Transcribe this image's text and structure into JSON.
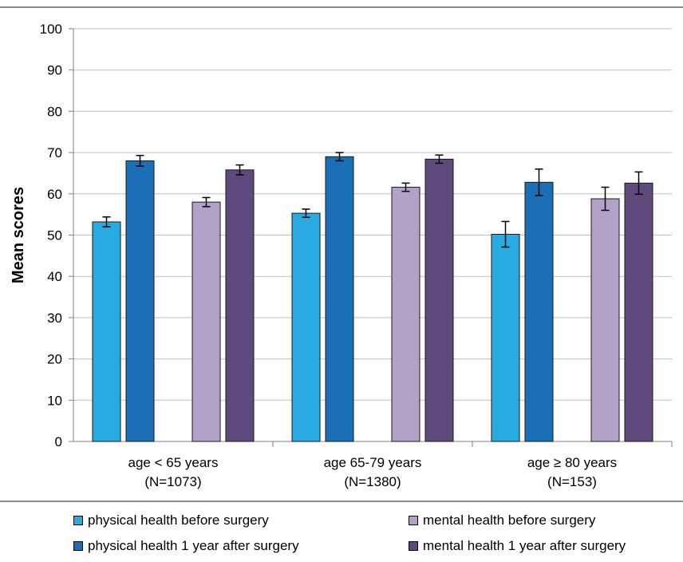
{
  "chart_data": {
    "type": "bar",
    "ylabel": "Mean scores",
    "ylim": [
      0,
      100
    ],
    "yticks": [
      0,
      10,
      20,
      30,
      40,
      50,
      60,
      70,
      80,
      90,
      100
    ],
    "grid": true,
    "legend_position": "bottom",
    "categories": [
      {
        "line1": "age < 65 years",
        "line2": "(N=1073)"
      },
      {
        "line1": "age 65-79 years",
        "line2": "(N=1380)"
      },
      {
        "line1": "age ≥ 80 years",
        "line2": "(N=153)"
      }
    ],
    "series": [
      {
        "name": "physical health before surgery",
        "color": "#29ABE2",
        "values": [
          53.2,
          55.3,
          50.2
        ],
        "errors": [
          1.2,
          1.0,
          3.1
        ]
      },
      {
        "name": "physical health 1 year after surgery",
        "color": "#1A6FB6",
        "values": [
          68.0,
          69.0,
          62.8
        ],
        "errors": [
          1.3,
          1.0,
          3.2
        ]
      },
      {
        "name": "mental health before surgery",
        "color": "#B3A2C8",
        "values": [
          58.0,
          61.6,
          58.8
        ],
        "errors": [
          1.1,
          1.0,
          2.8
        ]
      },
      {
        "name": "mental health 1 year after surgery",
        "color": "#5F4A7D",
        "values": [
          65.8,
          68.4,
          62.6
        ],
        "errors": [
          1.2,
          1.0,
          2.7
        ]
      }
    ]
  }
}
